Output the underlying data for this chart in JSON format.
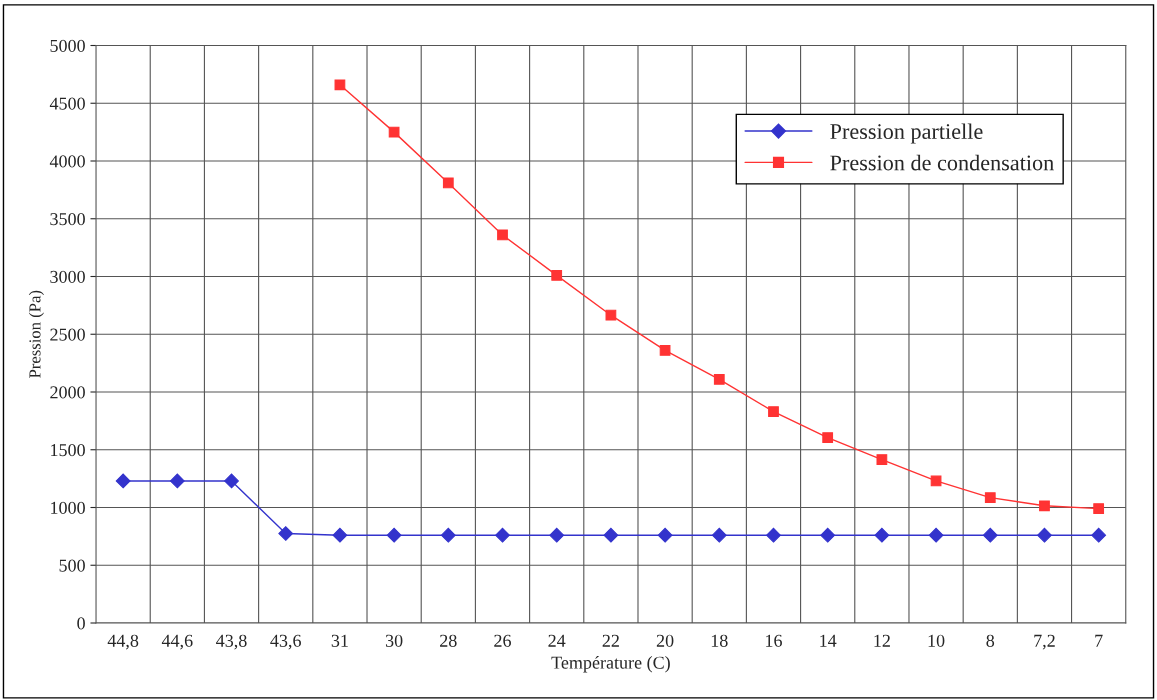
{
  "chart_data": {
    "type": "line",
    "xlabel": "Température (C)",
    "ylabel": "Pression (Pa)",
    "categories": [
      "44,8",
      "44,6",
      "43,8",
      "43,6",
      "31",
      "30",
      "28",
      "26",
      "24",
      "22",
      "20",
      "18",
      "16",
      "14",
      "12",
      "10",
      "8",
      "7,2",
      "7"
    ],
    "series": [
      {
        "name": "Pression partielle",
        "color": "#3333cc",
        "marker": "diamond",
        "values": [
          1230,
          1230,
          1230,
          775,
          760,
          760,
          760,
          760,
          760,
          760,
          760,
          760,
          760,
          760,
          760,
          760,
          760,
          760,
          760
        ]
      },
      {
        "name": "Pression de condensation",
        "color": "#ff3333",
        "marker": "square",
        "values": [
          null,
          null,
          null,
          null,
          4660,
          4250,
          3810,
          3360,
          3010,
          2665,
          2360,
          2110,
          1830,
          1605,
          1415,
          1230,
          1085,
          1015,
          990
        ]
      }
    ],
    "ylim": [
      0,
      5000
    ],
    "yticks": [
      0,
      500,
      1000,
      1500,
      2000,
      2500,
      3000,
      3500,
      4000,
      4500,
      5000
    ],
    "grid": true,
    "legend": "top right"
  }
}
